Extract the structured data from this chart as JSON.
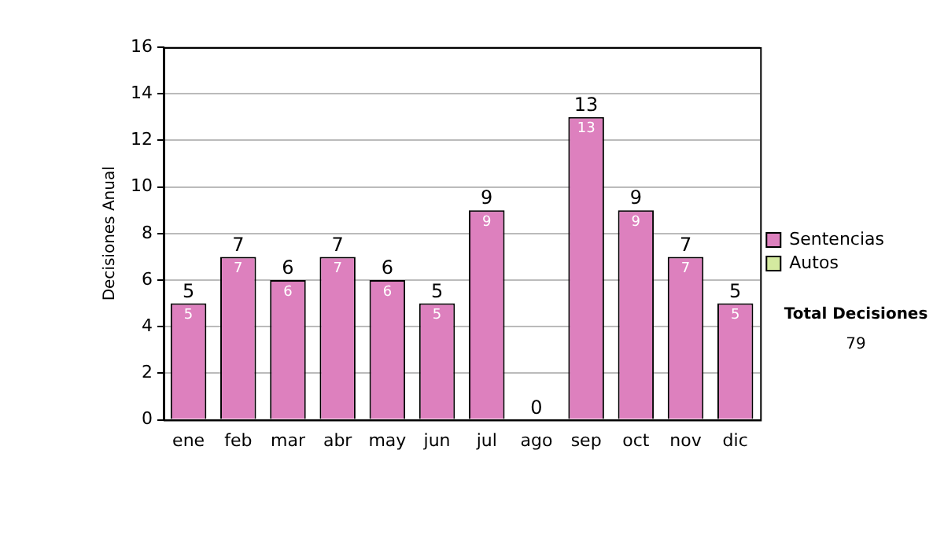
{
  "chart_data": {
    "type": "bar",
    "stacked": true,
    "ylabel": "Decisiones Anual",
    "categories": [
      "ene",
      "feb",
      "mar",
      "abr",
      "may",
      "jun",
      "jul",
      "ago",
      "sep",
      "oct",
      "nov",
      "dic"
    ],
    "series": [
      {
        "name": "Sentencias",
        "color": "#dd80be",
        "values": [
          5,
          7,
          6,
          7,
          6,
          5,
          9,
          0,
          13,
          9,
          7,
          5
        ],
        "value_labels": [
          "5",
          "7",
          "6",
          "7",
          "6",
          "5",
          "9",
          null,
          "13",
          "9",
          "7",
          "5"
        ]
      },
      {
        "name": "Autos",
        "color": "#d4eaa0",
        "values": [
          0,
          0,
          0,
          0,
          0,
          0,
          0,
          0,
          0,
          0,
          0,
          0
        ]
      }
    ],
    "totals": [
      "5",
      "7",
      "6",
      "7",
      "6",
      "5",
      "9",
      "0",
      "13",
      "9",
      "7",
      "5"
    ],
    "ylim": [
      0,
      16
    ],
    "yticks": [
      0,
      2,
      4,
      6,
      8,
      10,
      12,
      14,
      16
    ],
    "grid": "y",
    "legend": "right",
    "annotations": [
      "Total Decisiones",
      "79"
    ]
  }
}
